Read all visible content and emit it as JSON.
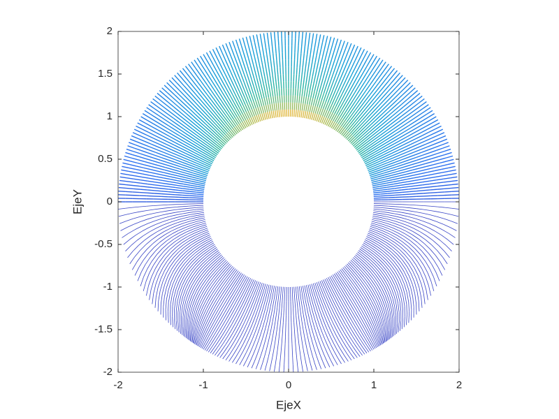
{
  "chart_data": {
    "type": "contour",
    "xlabel": "EjeX",
    "ylabel": "EjeY",
    "xlim": [
      -2,
      2
    ],
    "ylim": [
      -2,
      2
    ],
    "xticks": [
      -2,
      -1,
      0,
      1,
      2
    ],
    "yticks": [
      -2,
      -1.5,
      -1,
      -0.5,
      0,
      0.5,
      1,
      1.5,
      2
    ],
    "grid": false
  }
}
